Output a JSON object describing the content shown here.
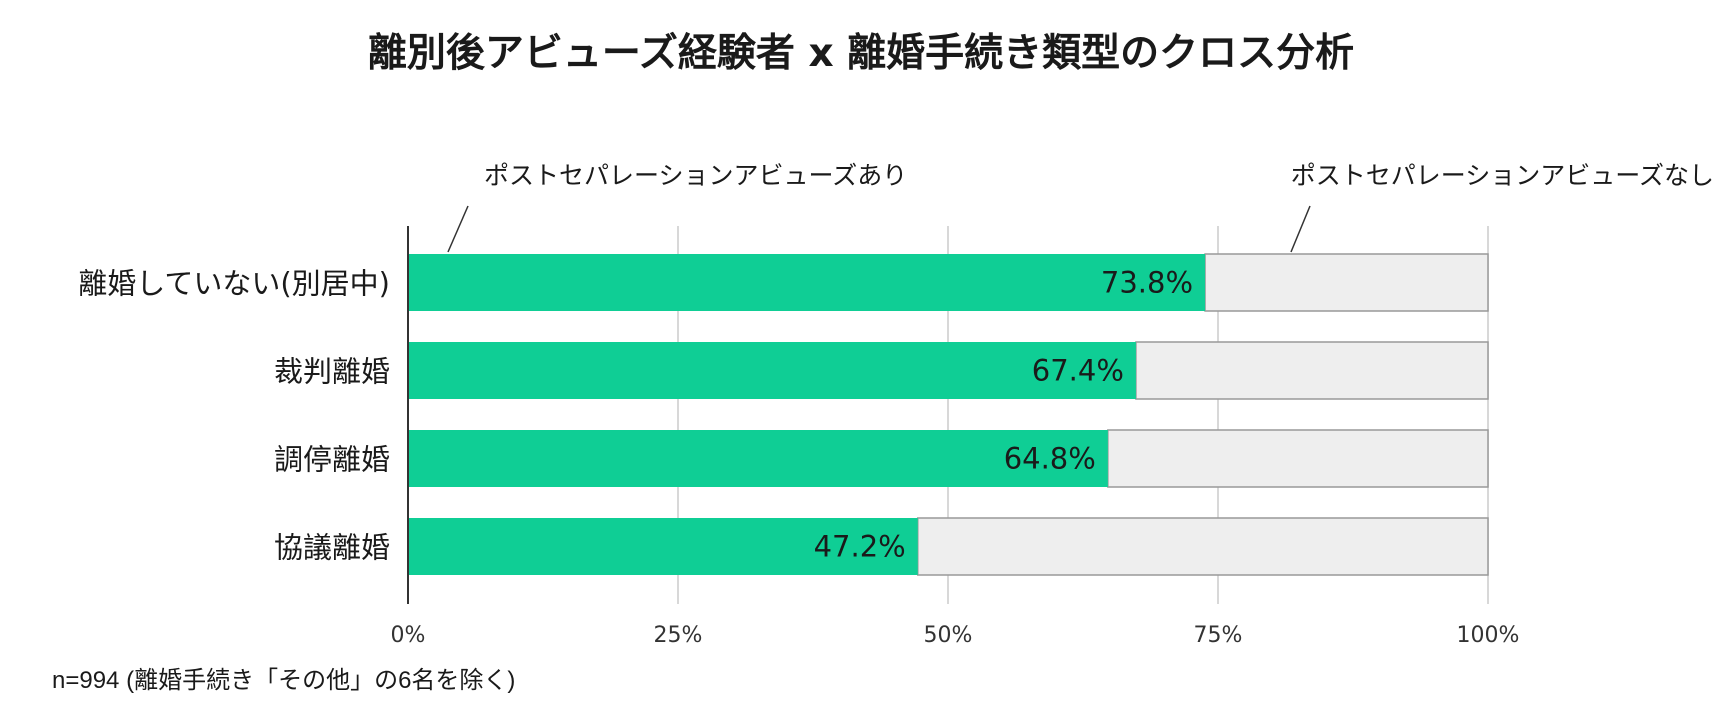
{
  "chart_data": {
    "type": "bar",
    "orientation": "horizontal",
    "stacked": true,
    "title": "離別後アビューズ経験者 x 離婚手続き類型のクロス分析",
    "categories": [
      "離婚していない(別居中)",
      "裁判離婚",
      "調停離婚",
      "協議離婚"
    ],
    "series": [
      {
        "name": "ポストセパレーションアビューズあり",
        "values": [
          73.8,
          67.4,
          64.8,
          47.2
        ],
        "color": "#0fce95"
      },
      {
        "name": "ポストセパレーションアビューズなし",
        "values": [
          26.2,
          32.6,
          35.2,
          52.8
        ],
        "color": "#eeeeee"
      }
    ],
    "data_labels": [
      "73.8%",
      "67.4%",
      "64.8%",
      "47.2%"
    ],
    "xlim": [
      0,
      100
    ],
    "x_ticks": [
      "0%",
      "25%",
      "50%",
      "75%",
      "100%"
    ],
    "grid": true,
    "legend": "top, callouts"
  },
  "footnote": "n=994 (離婚手続き「その他」の6名を除く)"
}
